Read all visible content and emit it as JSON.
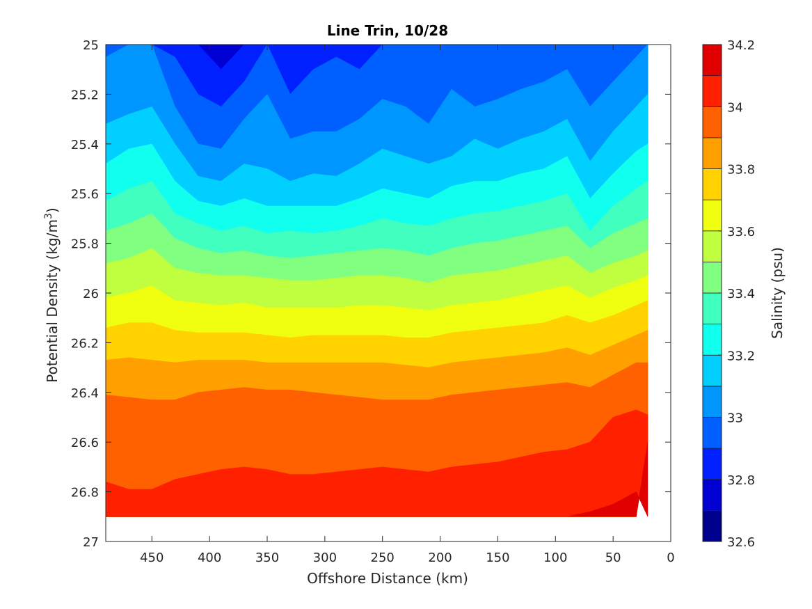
{
  "chart_data": {
    "type": "heatmap",
    "title": "Line Trin, 10/28",
    "xlabel": "Offshore Distance (km)",
    "ylabel_main": "Potential Density (kg/m",
    "ylabel_sup": "3",
    "ylabel_close": ")",
    "colorbar_label": "Salinity (psu)",
    "xlim": [
      490,
      0
    ],
    "ylim": [
      25,
      27
    ],
    "x_reversed": true,
    "y_reversed": true,
    "xticks": [
      450,
      400,
      350,
      300,
      250,
      200,
      150,
      100,
      50,
      0
    ],
    "xtick_labels": [
      "450",
      "400",
      "350",
      "300",
      "250",
      "200",
      "150",
      "100",
      "50",
      "0"
    ],
    "yticks": [
      25,
      25.2,
      25.4,
      25.6,
      25.8,
      26,
      26.2,
      26.4,
      26.6,
      26.8,
      27
    ],
    "ytick_labels": [
      "25",
      "25.2",
      "25.4",
      "25.6",
      "25.8",
      "26",
      "26.2",
      "26.4",
      "26.6",
      "26.8",
      "27"
    ],
    "colorbar_range": [
      32.6,
      34.2
    ],
    "colorbar_ticks": [
      32.6,
      32.8,
      33,
      33.2,
      33.4,
      33.6,
      33.8,
      34,
      34.2
    ],
    "colorbar_tick_labels": [
      "32.6",
      "32.8",
      "33",
      "33.2",
      "33.4",
      "33.6",
      "33.8",
      "34",
      "34.2"
    ],
    "levels": [
      32.6,
      32.7,
      32.8,
      32.9,
      33.0,
      33.1,
      33.2,
      33.3,
      33.4,
      33.5,
      33.6,
      33.7,
      33.8,
      33.9,
      34.0,
      34.1,
      34.2
    ],
    "level_colors": [
      "#00008f",
      "#0000d2",
      "#0020ff",
      "#005fff",
      "#0096ff",
      "#00cfff",
      "#10ffef",
      "#40ffbf",
      "#80ff80",
      "#bfff40",
      "#f0ff10",
      "#ffd200",
      "#ffa000",
      "#ff6000",
      "#ff2000",
      "#e00000",
      "#a00000"
    ],
    "x": [
      490,
      470,
      450,
      430,
      410,
      390,
      370,
      350,
      330,
      310,
      290,
      270,
      250,
      230,
      210,
      190,
      170,
      150,
      130,
      110,
      90,
      70,
      50,
      30,
      20
    ],
    "isopycnal_boundaries": [
      {
        "level": 32.8,
        "y": [
          25.0,
          25.0,
          25.0,
          25.0,
          25.0,
          25.1,
          25.0,
          25.0,
          25.0,
          25.0,
          25.0,
          25.0,
          25.0,
          25.0,
          25.1,
          25.0,
          25.0,
          25.0,
          25.0,
          25.0,
          25.0,
          25.0,
          25.0,
          25.0,
          25.0
        ]
      },
      {
        "level": 32.9,
        "y": [
          25.0,
          25.0,
          25.0,
          25.05,
          25.2,
          25.25,
          25.15,
          25.0,
          25.2,
          25.1,
          25.05,
          25.1,
          25.0,
          25.0,
          25.0,
          25.0,
          25.0,
          25.0,
          25.0,
          25.0,
          25.0,
          25.0,
          25.0,
          25.0,
          25.0
        ]
      },
      {
        "level": 33.0,
        "y": [
          25.05,
          25.0,
          25.0,
          25.25,
          25.4,
          25.42,
          25.3,
          25.2,
          25.38,
          25.35,
          25.35,
          25.3,
          25.22,
          25.25,
          25.32,
          25.18,
          25.25,
          25.22,
          25.18,
          25.15,
          25.1,
          25.25,
          25.15,
          25.05,
          25.0
        ]
      },
      {
        "level": 33.1,
        "y": [
          25.32,
          25.28,
          25.25,
          25.4,
          25.53,
          25.55,
          25.48,
          25.5,
          25.55,
          25.52,
          25.53,
          25.48,
          25.42,
          25.45,
          25.48,
          25.45,
          25.38,
          25.42,
          25.38,
          25.35,
          25.3,
          25.47,
          25.35,
          25.25,
          25.2
        ]
      },
      {
        "level": 33.2,
        "y": [
          25.48,
          25.42,
          25.4,
          25.55,
          25.63,
          25.65,
          25.62,
          25.65,
          25.65,
          25.65,
          25.65,
          25.62,
          25.58,
          25.6,
          25.62,
          25.57,
          25.55,
          25.55,
          25.52,
          25.5,
          25.45,
          25.62,
          25.52,
          25.43,
          25.4
        ]
      },
      {
        "level": 33.3,
        "y": [
          25.63,
          25.58,
          25.55,
          25.68,
          25.72,
          25.75,
          25.73,
          25.76,
          25.75,
          25.76,
          25.75,
          25.73,
          25.7,
          25.72,
          25.73,
          25.7,
          25.68,
          25.67,
          25.65,
          25.63,
          25.6,
          25.75,
          25.65,
          25.58,
          25.55
        ]
      },
      {
        "level": 33.4,
        "y": [
          25.75,
          25.72,
          25.68,
          25.78,
          25.82,
          25.84,
          25.83,
          25.85,
          25.86,
          25.85,
          25.84,
          25.83,
          25.82,
          25.83,
          25.85,
          25.82,
          25.8,
          25.79,
          25.77,
          25.75,
          25.73,
          25.82,
          25.76,
          25.72,
          25.7
        ]
      },
      {
        "level": 33.5,
        "y": [
          25.88,
          25.86,
          25.82,
          25.9,
          25.92,
          25.93,
          25.93,
          25.94,
          25.95,
          25.95,
          25.94,
          25.93,
          25.93,
          25.94,
          25.96,
          25.93,
          25.92,
          25.91,
          25.89,
          25.87,
          25.85,
          25.92,
          25.88,
          25.85,
          25.83
        ]
      },
      {
        "level": 33.6,
        "y": [
          26.02,
          26.0,
          25.97,
          26.03,
          26.04,
          26.05,
          26.04,
          26.06,
          26.06,
          26.06,
          26.06,
          26.05,
          26.05,
          26.06,
          26.07,
          26.05,
          26.04,
          26.03,
          26.01,
          25.99,
          25.97,
          26.02,
          25.98,
          25.95,
          25.93
        ]
      },
      {
        "level": 33.7,
        "y": [
          26.14,
          26.12,
          26.12,
          26.15,
          26.16,
          26.16,
          26.16,
          26.17,
          26.18,
          26.17,
          26.17,
          26.17,
          26.17,
          26.18,
          26.18,
          26.16,
          26.15,
          26.14,
          26.13,
          26.12,
          26.09,
          26.12,
          26.09,
          26.05,
          26.03
        ]
      },
      {
        "level": 33.8,
        "y": [
          26.27,
          26.26,
          26.27,
          26.28,
          26.27,
          26.27,
          26.27,
          26.28,
          26.28,
          26.28,
          26.28,
          26.28,
          26.28,
          26.29,
          26.3,
          26.28,
          26.27,
          26.26,
          26.25,
          26.24,
          26.22,
          26.25,
          26.21,
          26.17,
          26.15
        ]
      },
      {
        "level": 33.9,
        "y": [
          26.41,
          26.42,
          26.43,
          26.43,
          26.4,
          26.39,
          26.38,
          26.39,
          26.39,
          26.4,
          26.41,
          26.42,
          26.43,
          26.43,
          26.43,
          26.41,
          26.4,
          26.39,
          26.38,
          26.37,
          26.36,
          26.38,
          26.33,
          26.28,
          26.28
        ]
      },
      {
        "level": 34.0,
        "y": [
          26.76,
          26.79,
          26.79,
          26.75,
          26.73,
          26.71,
          26.7,
          26.71,
          26.73,
          26.73,
          26.72,
          26.71,
          26.7,
          26.71,
          26.72,
          26.7,
          26.69,
          26.68,
          26.66,
          26.64,
          26.63,
          26.6,
          26.5,
          26.47,
          26.49
        ]
      },
      {
        "level": 34.1,
        "y": [
          26.9,
          26.9,
          26.9,
          26.9,
          26.9,
          26.9,
          26.9,
          26.9,
          26.9,
          26.9,
          26.9,
          26.9,
          26.9,
          26.9,
          26.9,
          26.9,
          26.9,
          26.9,
          26.9,
          26.9,
          26.9,
          26.88,
          26.85,
          26.8,
          26.9
        ]
      }
    ],
    "data_bottom": [
      26.9,
      26.9,
      26.9,
      26.9,
      26.9,
      26.9,
      26.9,
      26.9,
      26.9,
      26.9,
      26.9,
      26.9,
      26.9,
      26.9,
      26.9,
      26.9,
      26.9,
      26.9,
      26.9,
      26.9,
      26.9,
      26.9,
      26.9,
      26.9,
      26.6
    ],
    "grid": false,
    "legend": "colorbar-right"
  }
}
